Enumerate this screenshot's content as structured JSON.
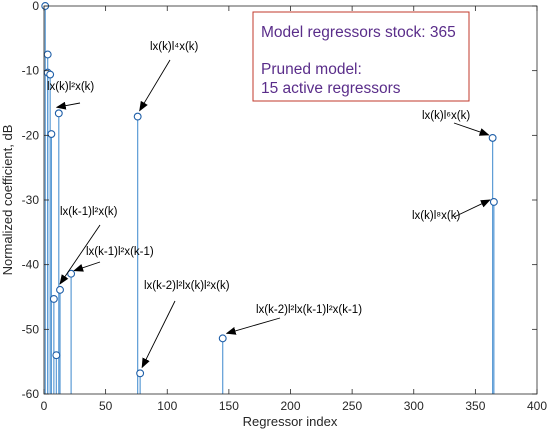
{
  "chart_data": {
    "type": "stem",
    "title": "",
    "xlabel": "Regressor index",
    "ylabel": "Normalized coefficient, dB",
    "xlim": [
      0,
      400
    ],
    "ylim": [
      -60,
      0
    ],
    "xticks": [
      "0",
      "50",
      "100",
      "150",
      "200",
      "250",
      "300",
      "350",
      "400"
    ],
    "yticks": [
      "0",
      "-10",
      "-20",
      "-30",
      "-40",
      "-50",
      "-60"
    ],
    "grid": false,
    "series_color": "#5b9bd5",
    "points": [
      {
        "x": 1,
        "y": 0
      },
      {
        "x": 3,
        "y": -7.5
      },
      {
        "x": 3,
        "y": -10.3
      },
      {
        "x": 5,
        "y": -10.6
      },
      {
        "x": 6,
        "y": -19.8
      },
      {
        "x": 8,
        "y": -45.3
      },
      {
        "x": 10,
        "y": -54.0
      },
      {
        "x": 12,
        "y": -16.6
      },
      {
        "x": 13,
        "y": -43.9
      },
      {
        "x": 22,
        "y": -41.4
      },
      {
        "x": 76,
        "y": -17.1
      },
      {
        "x": 78,
        "y": -56.8
      },
      {
        "x": 145,
        "y": -51.4
      },
      {
        "x": 364,
        "y": -20.4
      },
      {
        "x": 365,
        "y": -30.3
      }
    ],
    "annotations": [
      {
        "label": "lx(k)l²x(k)",
        "target": [
          12,
          -16.6
        ]
      },
      {
        "label": "lx(k)l⁴x(k)",
        "target": [
          76,
          -17.1
        ]
      },
      {
        "label": "lx(k-1)l²x(k)",
        "target": [
          13,
          -43.9
        ]
      },
      {
        "label": "lx(k-1)l²x(k-1)",
        "target": [
          22,
          -41.4
        ]
      },
      {
        "label": "lx(k-2)l²lx(k)l²x(k)",
        "target": [
          78,
          -56.8
        ]
      },
      {
        "label": "lx(k-2)l²lx(k-1)l²x(k-1)",
        "target": [
          145,
          -51.4
        ]
      },
      {
        "label": "lx(k)l⁶x(k)",
        "target": [
          364,
          -20.4
        ]
      },
      {
        "label": "lx(k)l⁸x(k)",
        "target": [
          365,
          -30.3
        ]
      }
    ],
    "info_box": {
      "line1": "Model regressors stock: 365",
      "line2": "Pruned model:",
      "line3": "15 active regressors",
      "border_color": "#c0392b",
      "text_color": "#5a2d8a"
    }
  }
}
